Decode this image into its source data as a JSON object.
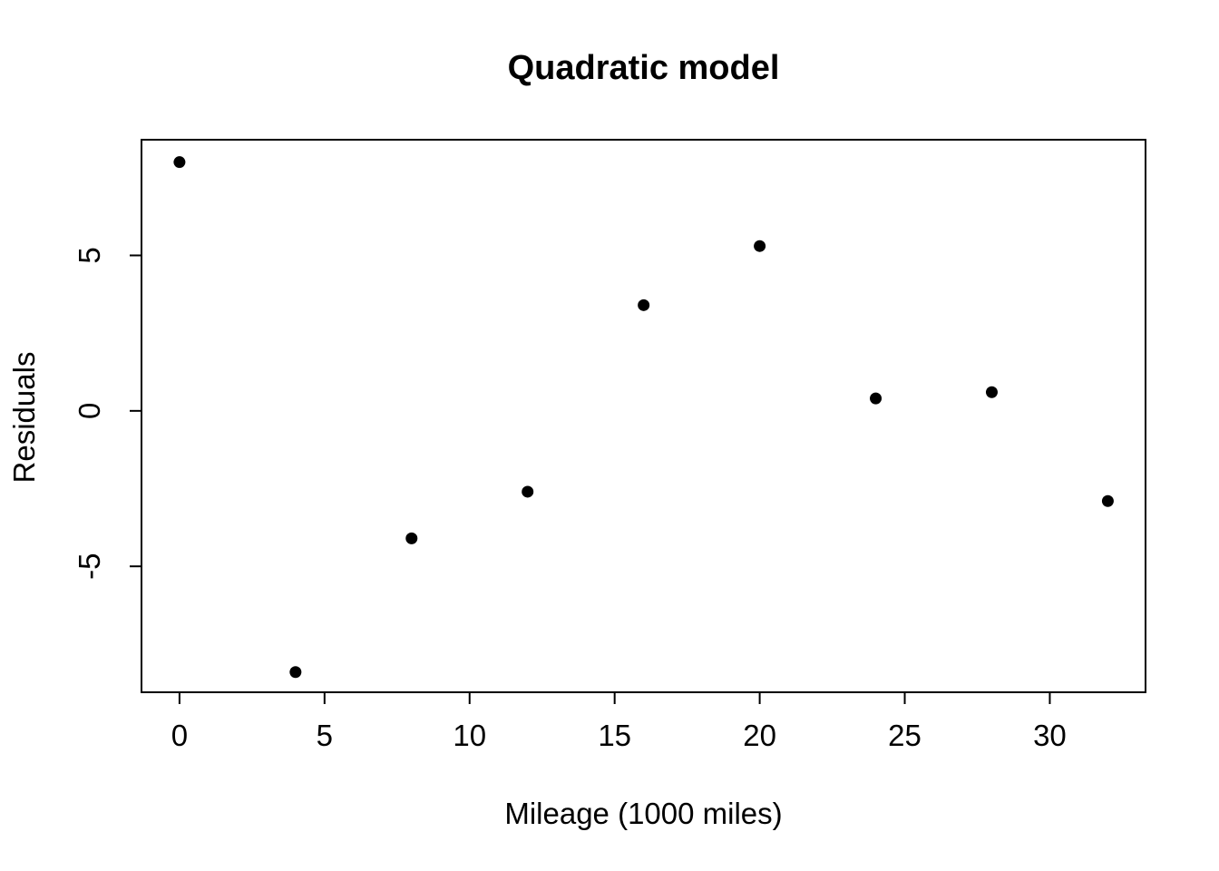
{
  "chart_data": {
    "type": "scatter",
    "title": "Quadratic model",
    "xlabel": "Mileage (1000 miles)",
    "ylabel": "Residuals",
    "points": [
      {
        "x": 0,
        "y": 8.0
      },
      {
        "x": 4,
        "y": -8.4
      },
      {
        "x": 8,
        "y": -4.1
      },
      {
        "x": 12,
        "y": -2.6
      },
      {
        "x": 16,
        "y": 3.4
      },
      {
        "x": 20,
        "y": 5.3
      },
      {
        "x": 24,
        "y": 0.4
      },
      {
        "x": 28,
        "y": 0.6
      },
      {
        "x": 32,
        "y": -2.9
      }
    ],
    "x_ticks": [
      0,
      5,
      10,
      15,
      20,
      25,
      30
    ],
    "y_ticks": [
      -5,
      0,
      5
    ],
    "xlim": [
      -1.31,
      33.3
    ],
    "ylim": [
      -9.05,
      8.72
    ],
    "marker": {
      "shape": "filled-circle",
      "color": "#000000",
      "radius_px": 6.5
    },
    "background_color": "#ffffff",
    "foreground_color": "#000000",
    "grid": false,
    "legend": false
  }
}
